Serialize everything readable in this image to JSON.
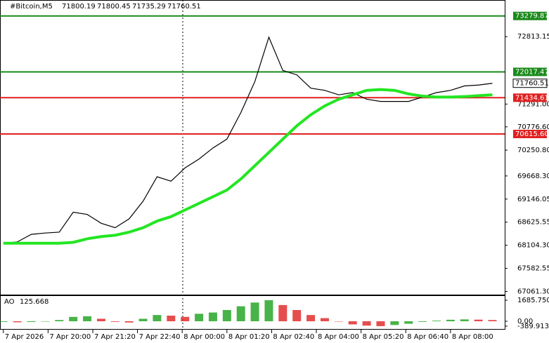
{
  "chart_data": [
    {
      "type": "line",
      "title": "#Bitcoin,M5",
      "ohlc": [
        71800.19,
        71800.45,
        71735.29,
        71760.51
      ],
      "x": [
        0,
        25,
        50,
        75,
        100,
        125,
        150,
        175,
        200,
        225,
        250,
        275,
        300,
        325,
        350,
        375,
        400,
        425,
        450,
        475,
        500,
        525,
        550,
        575,
        600,
        625,
        650,
        675,
        700,
        725,
        750,
        775,
        800,
        825,
        850,
        875
      ],
      "series": [
        {
          "color": "#000000",
          "values": [
            68150,
            68180,
            68350,
            68380,
            68400,
            68850,
            68800,
            68600,
            68500,
            68700,
            69100,
            69650,
            69550,
            69850,
            70050,
            70300,
            70500,
            71100,
            71800,
            72800,
            72050,
            71950,
            71650,
            71600,
            71500,
            71550,
            71400,
            71350,
            71350,
            71350,
            71450,
            71550,
            71600,
            71700,
            71720,
            71760
          ]
        },
        {
          "color": "#22e622",
          "values": [
            68150,
            68150,
            68150,
            68150,
            68150,
            68170,
            68250,
            68300,
            68330,
            68400,
            68500,
            68650,
            68750,
            68900,
            69050,
            69200,
            69350,
            69600,
            69900,
            70200,
            70500,
            70800,
            71050,
            71250,
            71400,
            71500,
            71600,
            71620,
            71600,
            71520,
            71470,
            71450,
            71450,
            71460,
            71480,
            71500
          ]
        }
      ],
      "xlim": [
        -6,
        897
      ],
      "xticks": [
        {
          "value": 0,
          "label": "7 Apr 2026"
        },
        {
          "value": 80,
          "label": "7 Apr 20:00"
        },
        {
          "value": 160,
          "label": "7 Apr 21:20"
        },
        {
          "value": 240,
          "label": "7 Apr 22:40"
        },
        {
          "value": 320,
          "label": "8 Apr 00:00"
        },
        {
          "value": 400,
          "label": "8 Apr 01:20"
        },
        {
          "value": 480,
          "label": "8 Apr 02:40"
        },
        {
          "value": 560,
          "label": "8 Apr 04:00"
        },
        {
          "value": 640,
          "label": "8 Apr 05:20"
        },
        {
          "value": 720,
          "label": "8 Apr 06:40"
        },
        {
          "value": 800,
          "label": "8 Apr 08:00"
        }
      ],
      "ylim": [
        66990,
        73640
      ],
      "yticks": [
        72813.15,
        {
          "value": 71291.0,
          "label": "71291.00"
        },
        {
          "value": 70776.6,
          "label": "70776.60"
        },
        {
          "value": 70250.8,
          "label": "70250.80"
        },
        {
          "value": 69668.3,
          "label": "69668.30"
        },
        69146.05,
        68625.55,
        {
          "value": 68104.3,
          "label": "68104.30"
        },
        67582.55,
        {
          "value": 67061.3,
          "label": "67061.30"
        }
      ],
      "levels": [
        {
          "value": 73279.87,
          "color": "#1a8a1a"
        },
        {
          "value": 72017.47,
          "color": "#1a8a1a"
        },
        {
          "value": 71434.61,
          "color": "#e02020"
        },
        {
          "value": 70615.6,
          "label": "70615.60",
          "color": "#e02020"
        }
      ],
      "current_price": 71760.51
    },
    {
      "type": "bar",
      "title": "AO",
      "current": 125.668,
      "up_color": "#1aa01a",
      "down_color": "#e02020",
      "values": [
        -50,
        -80,
        -60,
        -30,
        100,
        350,
        400,
        200,
        -50,
        -100,
        200,
        500,
        450,
        350,
        600,
        700,
        900,
        1200,
        1500,
        1685.75,
        1300,
        900,
        500,
        250,
        0,
        -250,
        -350,
        -389.913,
        -300,
        -200,
        -50,
        50,
        120,
        150,
        130,
        100
      ],
      "ylim": [
        -674,
        2079
      ],
      "yticks": [
        {
          "value": 1685.75,
          "label": "1685.750"
        },
        {
          "value": 0,
          "label": "0.00"
        },
        -389.913
      ]
    }
  ]
}
